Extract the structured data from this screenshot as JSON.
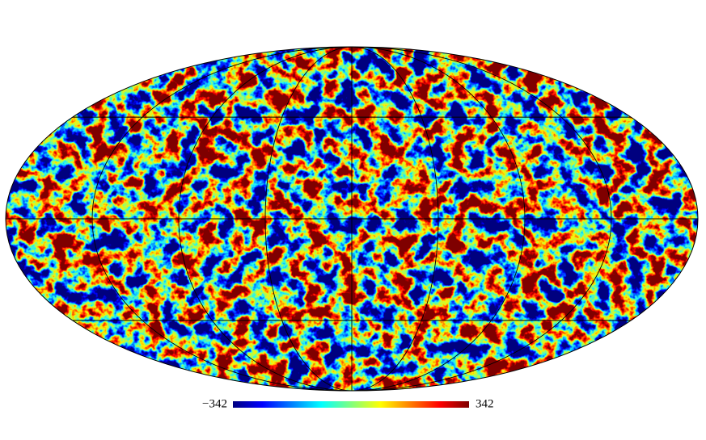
{
  "map": {
    "projection": "mollweide",
    "graticule": true,
    "colormap": "jet",
    "colorbar": {
      "min": {
        "value": -342,
        "label": "−342"
      },
      "max": 342
    }
  }
}
